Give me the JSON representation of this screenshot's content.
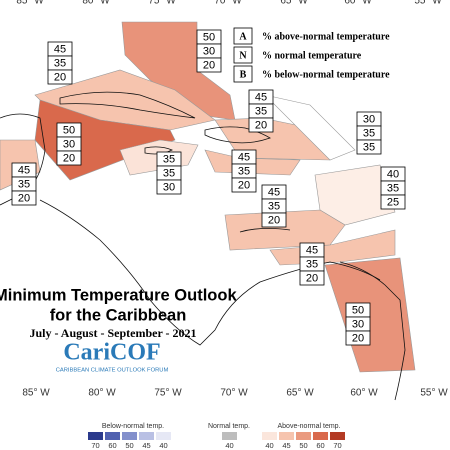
{
  "map": {
    "title": "Minimum Temperature Outlook",
    "subtitle": "for the Caribbean",
    "period": "July - August - September - 2021",
    "logo": {
      "name": "CariCOF",
      "tagline": "CARIBBEAN CLIMATE OUTLOOK FORUM"
    },
    "key": [
      {
        "letter": "A",
        "text": "% above-normal temperature"
      },
      {
        "letter": "N",
        "text": "% normal temperature"
      },
      {
        "letter": "B",
        "text": "% below-normal temperature"
      }
    ],
    "longitudes": [
      "85° W",
      "80° W",
      "75° W",
      "70° W",
      "65° W",
      "60° W",
      "55° W"
    ],
    "regions": [
      {
        "above": 50,
        "normal": 30,
        "below": 20
      },
      {
        "above": 45,
        "normal": 35,
        "below": 20
      },
      {
        "above": 50,
        "normal": 30,
        "below": 20
      },
      {
        "above": 45,
        "normal": 35,
        "below": 20
      },
      {
        "above": 35,
        "normal": 35,
        "below": 30
      },
      {
        "above": 45,
        "normal": 35,
        "below": 20
      },
      {
        "above": 45,
        "normal": 35,
        "below": 20
      },
      {
        "above": 30,
        "normal": 35,
        "below": 35
      },
      {
        "above": 40,
        "normal": 35,
        "below": 25
      },
      {
        "above": 45,
        "normal": 35,
        "below": 20
      },
      {
        "above": 45,
        "normal": 35,
        "below": 20
      },
      {
        "above": 50,
        "normal": 30,
        "below": 20
      }
    ],
    "scale": {
      "below": {
        "title": "Below-normal temp.",
        "ticks": [
          70,
          60,
          50,
          45,
          40
        ]
      },
      "normal": {
        "title": "Normal temp.",
        "ticks": [
          40
        ]
      },
      "above": {
        "title": "Above-normal temp.",
        "ticks": [
          40,
          45,
          50,
          60,
          70
        ]
      }
    }
  }
}
